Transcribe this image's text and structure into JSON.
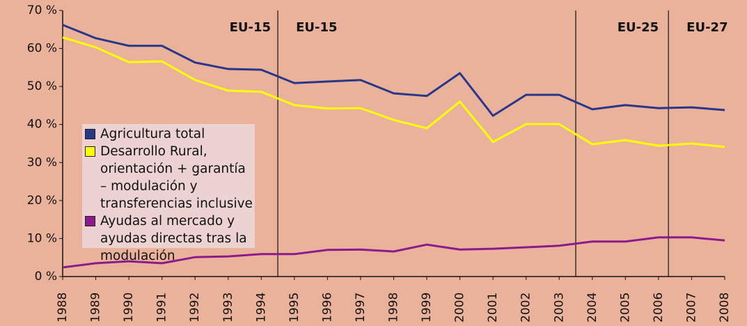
{
  "chart_data": {
    "type": "line",
    "x": [
      1988,
      1989,
      1990,
      1991,
      1992,
      1993,
      1994,
      1995,
      1996,
      1997,
      1998,
      1999,
      2000,
      2001,
      2002,
      2003,
      2004,
      2005,
      2006,
      2007,
      2008
    ],
    "xlim": [
      1988,
      2008
    ],
    "xticks": [
      1988,
      1989,
      1990,
      1991,
      1992,
      1993,
      1994,
      1995,
      1996,
      1997,
      1998,
      1999,
      2000,
      2001,
      2002,
      2003,
      2004,
      2005,
      2006,
      2007,
      2008
    ],
    "ylim": [
      0,
      70
    ],
    "yticks": [
      {
        "value": 0,
        "label": "0 %"
      },
      {
        "value": 10,
        "label": "10 %"
      },
      {
        "value": 20,
        "label": "20 %"
      },
      {
        "value": 30,
        "label": "30 %"
      },
      {
        "value": 40,
        "label": "40 %"
      },
      {
        "value": 50,
        "label": "50 %"
      },
      {
        "value": 60,
        "label": "60 %"
      },
      {
        "value": 70,
        "label": "70 %"
      }
    ],
    "series": [
      {
        "name": "Agricultura total",
        "color": "#28378a",
        "values": [
          66.2,
          62.7,
          60.7,
          60.7,
          56.3,
          54.6,
          54.4,
          50.9,
          51.3,
          51.7,
          48.2,
          47.5,
          53.5,
          42.3,
          47.8,
          47.8,
          44.0,
          45.1,
          44.3,
          44.5,
          43.8
        ]
      },
      {
        "name": "Desarrollo Rural, orientación + garantía – modulación y transferencias inclusive",
        "color": "#ffff00",
        "values": [
          62.9,
          60.3,
          56.4,
          56.6,
          51.7,
          48.9,
          48.6,
          45.1,
          44.2,
          44.3,
          41.2,
          39.0,
          46.0,
          35.4,
          40.1,
          40.1,
          34.8,
          35.9,
          34.4,
          35.0,
          34.1
        ]
      },
      {
        "name": "Ayudas al mercado y ayudas directas tras la modulación",
        "color": "#8c1a8c",
        "values": [
          2.4,
          3.5,
          4.0,
          3.5,
          5.1,
          5.3,
          5.9,
          5.9,
          7.0,
          7.1,
          6.6,
          8.4,
          7.1,
          7.3,
          7.7,
          8.1,
          9.2,
          9.2,
          10.3,
          10.3,
          9.5
        ]
      }
    ],
    "dividers": [
      1994.5,
      2003.5,
      2006.3
    ],
    "annotations": [
      "EU-15",
      "EU-15",
      "EU-25",
      "EU-27"
    ]
  }
}
